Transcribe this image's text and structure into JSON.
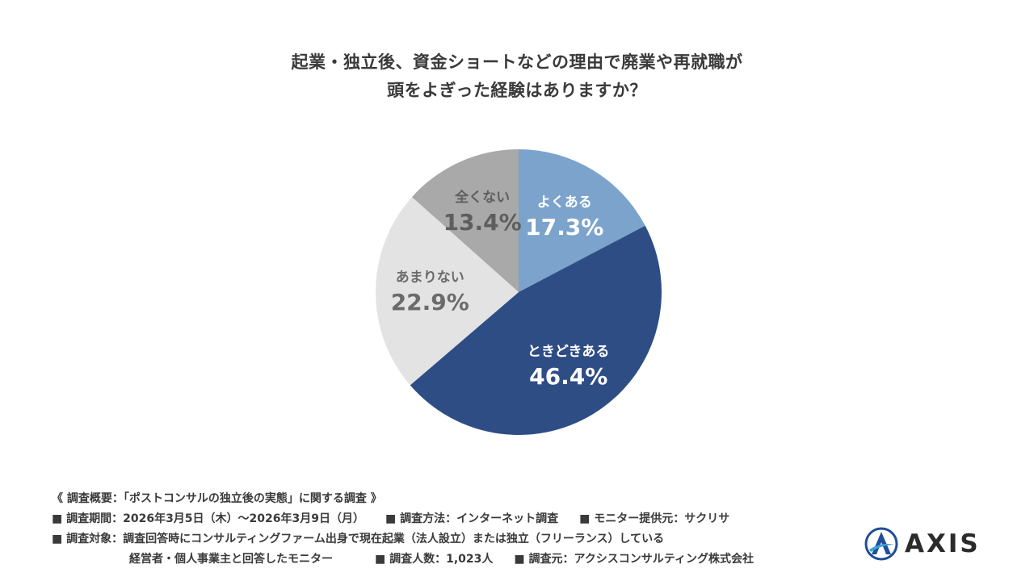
{
  "title": {
    "line1": "起業・独立後、資金ショートなどの理由で廃業や再就職が",
    "line2": "頭をよぎった経験はありますか？"
  },
  "chart_data": {
    "type": "pie",
    "slices": [
      {
        "label": "よくある",
        "value": 17.3,
        "value_label": "17.3%",
        "color": "#7ba3cb",
        "text_color": "#ffffff"
      },
      {
        "label": "ときどきある",
        "value": 46.4,
        "value_label": "46.4%",
        "color": "#2f4d85",
        "text_color": "#ffffff"
      },
      {
        "label": "あまりない",
        "value": 22.9,
        "value_label": "22.9%",
        "color": "#e3e3e3",
        "text_color": "#6b6b6b"
      },
      {
        "label": "全くない",
        "value": 13.4,
        "value_label": "13.4%",
        "color": "#a9a9a9",
        "text_color": "#5e5e5e"
      }
    ],
    "start": "top",
    "direction": "clockwise"
  },
  "footer": {
    "heading": "《 調査概要：「ポストコンサルの独立後の実態」に関する調査 》",
    "period": "■ 調査期間：2026年3月5日（木）〜2026年3月9日（月）",
    "method": "■ 調査方法：インターネット調査",
    "provider": "■ モニター提供元：サクリサ",
    "target_line1": "■ 調査対象：調査回答時にコンサルティングファーム出身で現在起業（法人設立）または独立（フリーランス）している",
    "target_line2": "経営者・個人事業主と回答したモニター",
    "count": "■ 調査人数：1,023人",
    "source": "■ 調査元：アクシスコンサルティング株式会社"
  },
  "logo": {
    "text": "AXIS",
    "mark_color_dark": "#1f4e9a",
    "mark_color_light": "#3da0dc"
  }
}
